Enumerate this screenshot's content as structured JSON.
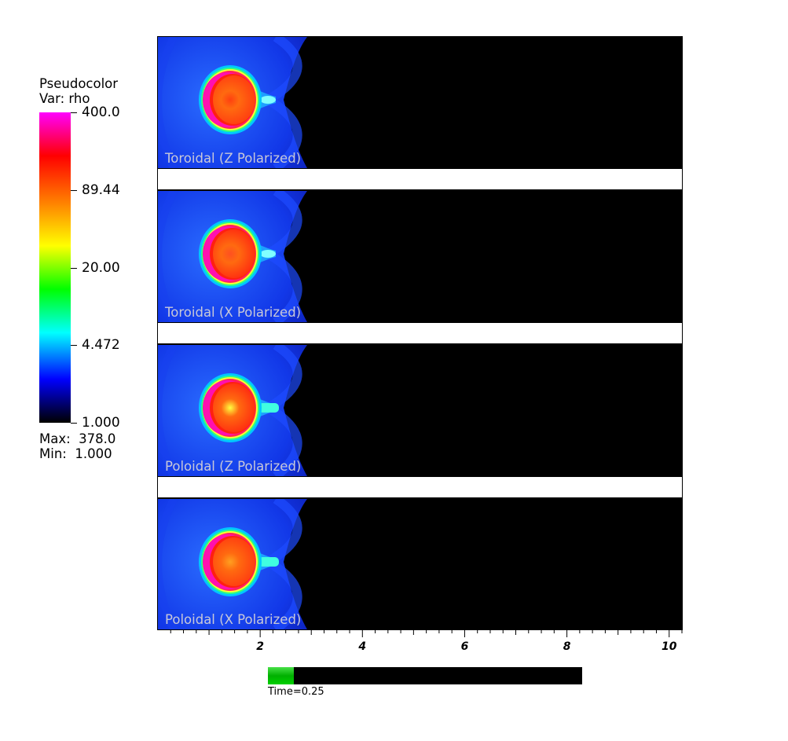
{
  "legend": {
    "title_line1": "Pseudocolor",
    "title_line2": "Var: rho",
    "ticks": [
      "400.0",
      "89.44",
      "20.00",
      "4.472",
      "1.000"
    ],
    "max_label": "Max:  378.0",
    "min_label": "Min:  1.000",
    "scale": "log",
    "colors": [
      "#000000",
      "#0000ff",
      "#00ffff",
      "#00ff00",
      "#ffff00",
      "#ff8000",
      "#ff0000",
      "#ff00ff"
    ]
  },
  "panels": [
    {
      "label": "Toroidal (Z Polarized)",
      "core": "#ff4010",
      "hotspot": "none"
    },
    {
      "label": "Toroidal (X Polarized)",
      "core": "#ff3010",
      "hotspot": "weak"
    },
    {
      "label": "Poloidal (Z Polarized)",
      "core": "#ff3010",
      "hotspot": "strong"
    },
    {
      "label": "Poloidal (X Polarized)",
      "core": "#ff4010",
      "hotspot": "medium"
    }
  ],
  "chart_data": {
    "type": "heatmap",
    "variable": "rho",
    "colorbar_ticks": [
      400.0,
      89.44,
      20.0,
      4.472,
      1.0
    ],
    "data_max": 378.0,
    "data_min": 1.0,
    "scale": "log",
    "x_ticks": [
      "2",
      "4",
      "6",
      "8",
      "10"
    ],
    "x_tick_values": [
      2,
      4,
      6,
      8,
      10
    ],
    "xlim": [
      0,
      10.25
    ]
  },
  "time": {
    "label": "Time=0.25",
    "progress": 0.083
  }
}
